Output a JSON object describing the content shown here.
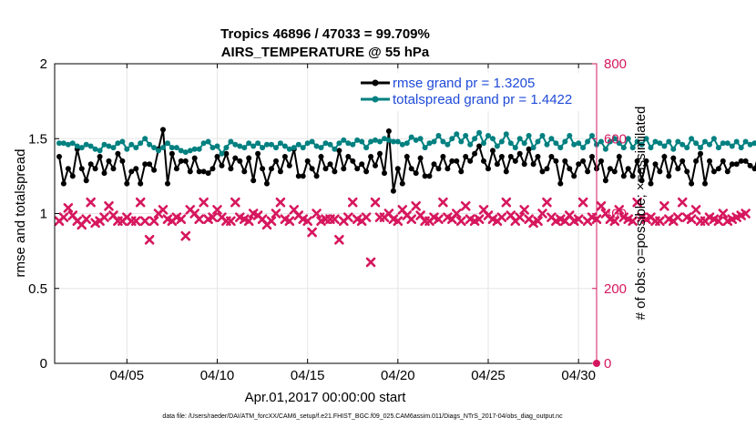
{
  "chart_data": {
    "type": "line",
    "title_line1": "Tropics 46896 / 47033 = 99.709%",
    "title_line2": "AIRS_TEMPERATURE @ 55 hPa",
    "xlabel": "Apr.01,2017 00:00:00 start",
    "ylabel_left": "rmse and totalspread",
    "ylabel_right": "# of obs: o=possible; ×=assimilated",
    "xlim": [
      1,
      31
    ],
    "ylim_left": [
      0,
      2
    ],
    "ylim_right": [
      0,
      800
    ],
    "x_ticks": [
      5,
      10,
      15,
      20,
      25,
      30
    ],
    "x_tick_labels": [
      "04/05",
      "04/10",
      "04/15",
      "04/20",
      "04/25",
      "04/30"
    ],
    "y_ticks_left": [
      0,
      0.5,
      1,
      1.5,
      2
    ],
    "y_tick_labels_left": [
      "0",
      "0.5",
      "1",
      "1.5",
      "2"
    ],
    "y_ticks_right": [
      0,
      200,
      400,
      600,
      800
    ],
    "y_tick_labels_right": [
      "0",
      "200",
      "400",
      "600",
      "800"
    ],
    "x_start": 1.25,
    "x_step": 0.25,
    "series": [
      {
        "name": "rmse grand pr = 1.3205",
        "color": "#000000",
        "axis": "left",
        "values": [
          1.38,
          1.2,
          1.3,
          1.25,
          1.43,
          1.3,
          1.22,
          1.33,
          1.3,
          1.38,
          1.27,
          1.35,
          1.3,
          1.4,
          1.35,
          1.2,
          1.28,
          1.3,
          1.2,
          1.33,
          1.33,
          1.29,
          1.43,
          1.56,
          1.2,
          1.4,
          1.3,
          1.35,
          1.35,
          1.28,
          1.37,
          1.28,
          1.28,
          1.27,
          1.3,
          1.38,
          1.32,
          1.4,
          1.3,
          1.37,
          1.35,
          1.28,
          1.37,
          1.22,
          1.4,
          1.3,
          1.2,
          1.3,
          1.35,
          1.28,
          1.38,
          1.32,
          1.43,
          1.25,
          1.25,
          1.35,
          1.3,
          1.25,
          1.38,
          1.3,
          1.33,
          1.28,
          1.42,
          1.3,
          1.38,
          1.35,
          1.3,
          1.33,
          1.28,
          1.38,
          1.32,
          1.4,
          1.27,
          1.55,
          1.15,
          1.3,
          1.2,
          1.38,
          1.3,
          1.27,
          1.37,
          1.25,
          1.25,
          1.33,
          1.3,
          1.38,
          1.3,
          1.35,
          1.35,
          1.28,
          1.38,
          1.35,
          1.4,
          1.45,
          1.35,
          1.3,
          1.42,
          1.33,
          1.38,
          1.28,
          1.38,
          1.35,
          1.4,
          1.33,
          1.43,
          1.33,
          1.38,
          1.28,
          1.3,
          1.38,
          1.35,
          1.2,
          1.35,
          1.3,
          1.25,
          1.33,
          1.35,
          1.28,
          1.38,
          1.3,
          1.35,
          1.22,
          1.3,
          1.28,
          1.38,
          1.25,
          1.3,
          1.25,
          1.35,
          1.22,
          1.35,
          1.2,
          1.33,
          1.28,
          1.38,
          1.25,
          1.37,
          1.3,
          1.35,
          1.28,
          1.2,
          1.35,
          1.4,
          1.2,
          1.35,
          1.28,
          1.3,
          1.35,
          1.28,
          1.33,
          1.33,
          1.35,
          1.35,
          1.32,
          1.3,
          1.4,
          1.3
        ]
      },
      {
        "name": "totalspread grand pr = 1.4422",
        "color": "#008080",
        "axis": "left",
        "values": [
          1.47,
          1.47,
          1.46,
          1.47,
          1.45,
          1.44,
          1.46,
          1.45,
          1.43,
          1.42,
          1.46,
          1.45,
          1.44,
          1.47,
          1.48,
          1.43,
          1.46,
          1.44,
          1.47,
          1.5,
          1.46,
          1.44,
          1.42,
          1.44,
          1.47,
          1.44,
          1.44,
          1.42,
          1.41,
          1.42,
          1.43,
          1.43,
          1.47,
          1.48,
          1.44,
          1.45,
          1.4,
          1.44,
          1.48,
          1.46,
          1.45,
          1.44,
          1.47,
          1.45,
          1.47,
          1.44,
          1.46,
          1.46,
          1.44,
          1.47,
          1.45,
          1.43,
          1.44,
          1.46,
          1.44,
          1.47,
          1.48,
          1.45,
          1.44,
          1.47,
          1.46,
          1.43,
          1.47,
          1.49,
          1.47,
          1.46,
          1.49,
          1.48,
          1.44,
          1.48,
          1.49,
          1.48,
          1.5,
          1.49,
          1.48,
          1.48,
          1.46,
          1.47,
          1.51,
          1.49,
          1.5,
          1.44,
          1.47,
          1.48,
          1.52,
          1.48,
          1.46,
          1.5,
          1.53,
          1.48,
          1.52,
          1.46,
          1.5,
          1.54,
          1.47,
          1.52,
          1.5,
          1.45,
          1.48,
          1.53,
          1.47,
          1.44,
          1.5,
          1.47,
          1.52,
          1.44,
          1.48,
          1.52,
          1.46,
          1.5,
          1.47,
          1.44,
          1.48,
          1.52,
          1.46,
          1.47,
          1.44,
          1.48,
          1.52,
          1.46,
          1.48,
          1.43,
          1.48,
          1.5,
          1.47,
          1.44,
          1.5,
          1.44,
          1.48,
          1.46,
          1.5,
          1.44,
          1.48,
          1.47,
          1.45,
          1.48,
          1.43,
          1.48,
          1.46,
          1.44,
          1.5,
          1.47,
          1.44,
          1.48,
          1.46,
          1.5,
          1.44,
          1.47,
          1.47,
          1.45,
          1.48,
          1.44,
          1.48,
          1.46,
          1.47
        ]
      },
      {
        "name": "# of obs assimilated",
        "color": "#d6175e",
        "axis": "right",
        "values": [
          380,
          390,
          415,
          395,
          380,
          370,
          385,
          430,
          375,
          380,
          390,
          420,
          395,
          380,
          380,
          390,
          380,
          380,
          430,
          380,
          330,
          380,
          400,
          410,
          385,
          380,
          390,
          385,
          340,
          410,
          400,
          385,
          430,
          385,
          390,
          410,
          390,
          380,
          380,
          430,
          390,
          385,
          380,
          400,
          395,
          385,
          370,
          380,
          400,
          430,
          385,
          380,
          410,
          395,
          385,
          380,
          350,
          400,
          380,
          385,
          385,
          385,
          330,
          380,
          390,
          430,
          385,
          380,
          390,
          270,
          430,
          390,
          390,
          400,
          385,
          380,
          410,
          395,
          385,
          420,
          395,
          380,
          380,
          390,
          385,
          430,
          390,
          385,
          400,
          380,
          420,
          385,
          380,
          385,
          410,
          395,
          385,
          380,
          390,
          430,
          395,
          380,
          390,
          410,
          385,
          375,
          380,
          400,
          430,
          390,
          380,
          385,
          380,
          395,
          380,
          385,
          430,
          380,
          390,
          385,
          420,
          400,
          385,
          380,
          410,
          390,
          385,
          380,
          430,
          390,
          385,
          390,
          380,
          380,
          420,
          385,
          380,
          390,
          430,
          390,
          385,
          410,
          380,
          380,
          390,
          385,
          380,
          400,
          380,
          385,
          390,
          395,
          400
        ]
      }
    ],
    "right_axis_marker_value": 0,
    "footnote": "data file: /Users/raeder/DAI/ATM_forcXX/CAM6_setup/f.e21.FHIST_BGC.f09_025.CAM6assim.011/Diags_NTrS_2017-04/obs_diag_output.nc"
  },
  "colors": {
    "accent_right": "#d6175e",
    "legend_text": "#1f4bd8",
    "grid": "#e6e6e6"
  }
}
